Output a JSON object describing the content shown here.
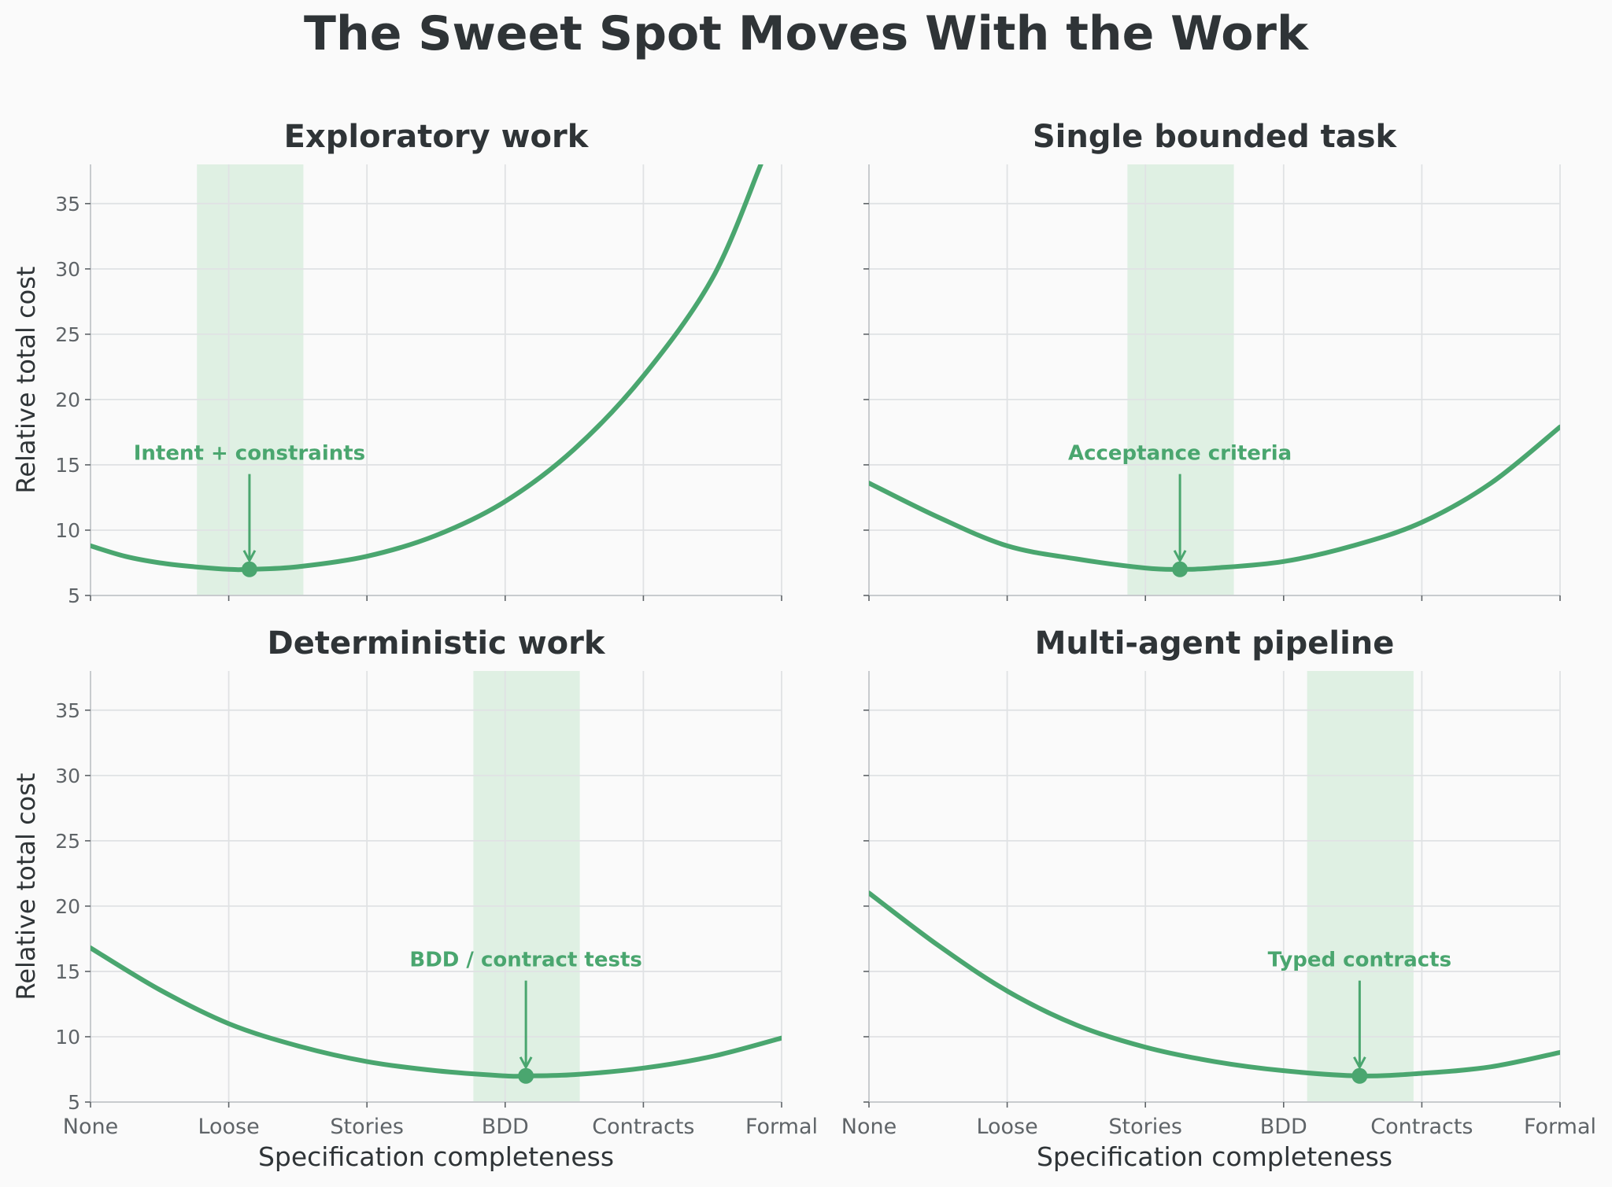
{
  "figure": {
    "title": "The Sweet Spot Moves With the Work",
    "colors": {
      "background": "#fafafa",
      "curve": "#4aa66f",
      "band": "#dff0e3",
      "grid": "#e0e2e4",
      "axis": "#c8cbce",
      "tick_text": "#5f6468",
      "label_text": "#2f3437"
    }
  },
  "chart_data": [
    {
      "type": "line",
      "title": "Exploratory work",
      "xlabel": "",
      "ylabel": "Relative total cost",
      "x_tick_labels": [
        "None",
        "Loose",
        "Stories",
        "BDD",
        "Contracts",
        "Formal"
      ],
      "x_tick_labels_visible": false,
      "y_ticks": [
        5,
        10,
        15,
        20,
        25,
        30,
        35
      ],
      "xlim": [
        0,
        5
      ],
      "ylim": [
        5,
        38
      ],
      "grid": true,
      "optimum": {
        "x": 1.15,
        "y": 7.0
      },
      "sweet_spot_band": [
        0.77,
        1.54
      ],
      "annotation": "Intent + constraints",
      "series": [
        {
          "x": [
            0,
            0.25,
            0.5,
            0.75,
            1.0,
            1.15,
            1.5,
            2.0,
            2.5,
            3.0,
            3.5,
            4.0,
            4.5,
            4.85
          ],
          "values": [
            8.8,
            8.0,
            7.5,
            7.2,
            7.0,
            7.0,
            7.2,
            8.0,
            9.6,
            12.2,
            16.2,
            21.8,
            29.3,
            38.0
          ]
        }
      ]
    },
    {
      "type": "line",
      "title": "Single bounded task",
      "xlabel": "",
      "ylabel": "",
      "x_tick_labels": [
        "None",
        "Loose",
        "Stories",
        "BDD",
        "Contracts",
        "Formal"
      ],
      "x_tick_labels_visible": false,
      "y_ticks": [
        5,
        10,
        15,
        20,
        25,
        30,
        35
      ],
      "y_tick_labels_visible": false,
      "xlim": [
        0,
        5
      ],
      "ylim": [
        5,
        38
      ],
      "grid": true,
      "optimum": {
        "x": 2.25,
        "y": 7.0
      },
      "sweet_spot_band": [
        1.87,
        2.64
      ],
      "annotation": "Acceptance criteria",
      "series": [
        {
          "x": [
            0,
            0.5,
            1.0,
            1.5,
            2.0,
            2.25,
            2.5,
            3.0,
            3.5,
            4.0,
            4.5,
            5.0
          ],
          "values": [
            13.6,
            11.0,
            8.8,
            7.8,
            7.1,
            7.0,
            7.1,
            7.6,
            8.8,
            10.6,
            13.6,
            17.9
          ]
        }
      ]
    },
    {
      "type": "line",
      "title": "Deterministic work",
      "xlabel": "Specification completeness",
      "ylabel": "Relative total cost",
      "x_tick_labels": [
        "None",
        "Loose",
        "Stories",
        "BDD",
        "Contracts",
        "Formal"
      ],
      "y_ticks": [
        5,
        10,
        15,
        20,
        25,
        30,
        35
      ],
      "xlim": [
        0,
        5
      ],
      "ylim": [
        5,
        38
      ],
      "grid": true,
      "optimum": {
        "x": 3.15,
        "y": 7.0
      },
      "sweet_spot_band": [
        2.77,
        3.54
      ],
      "annotation": "BDD / contract tests",
      "series": [
        {
          "x": [
            0,
            0.5,
            1.0,
            1.5,
            2.0,
            2.5,
            3.0,
            3.15,
            3.5,
            4.0,
            4.5,
            5.0
          ],
          "values": [
            16.8,
            13.6,
            11.0,
            9.3,
            8.1,
            7.4,
            7.0,
            7.0,
            7.1,
            7.6,
            8.5,
            9.9
          ]
        }
      ]
    },
    {
      "type": "line",
      "title": "Multi-agent pipeline",
      "xlabel": "Specification completeness",
      "ylabel": "",
      "x_tick_labels": [
        "None",
        "Loose",
        "Stories",
        "BDD",
        "Contracts",
        "Formal"
      ],
      "y_ticks": [
        5,
        10,
        15,
        20,
        25,
        30,
        35
      ],
      "y_tick_labels_visible": false,
      "xlim": [
        0,
        5
      ],
      "ylim": [
        5,
        38
      ],
      "grid": true,
      "optimum": {
        "x": 3.55,
        "y": 7.0
      },
      "sweet_spot_band": [
        3.17,
        3.94
      ],
      "annotation": "Typed contracts",
      "series": [
        {
          "x": [
            0,
            0.5,
            1.0,
            1.5,
            2.0,
            2.5,
            3.0,
            3.55,
            4.0,
            4.5,
            5.0
          ],
          "values": [
            21.0,
            17.0,
            13.5,
            10.9,
            9.2,
            8.1,
            7.4,
            7.0,
            7.2,
            7.7,
            8.8
          ]
        }
      ]
    }
  ]
}
